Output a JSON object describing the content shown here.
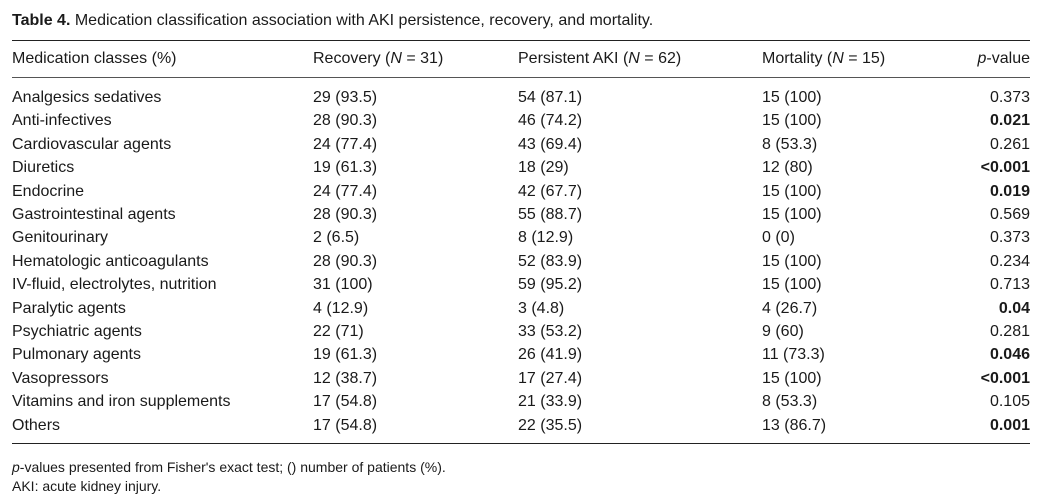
{
  "caption": {
    "label": "Table 4.",
    "text": "Medication classification association with AKI persistence, recovery, and mortality."
  },
  "headers": {
    "medication": "Medication classes (%)",
    "recovery": "Recovery (",
    "recovery_n": "N",
    "recovery_val": " = 31)",
    "persistent": "Persistent AKI (",
    "persistent_n": "N",
    "persistent_val": " = 62)",
    "mortality": "Mortality (",
    "mortality_n": "N",
    "mortality_val": " = 15)",
    "p_italic": "p",
    "p_rest": "-value"
  },
  "rows": [
    {
      "name": "Analgesics sedatives",
      "recovery": "29 (93.5)",
      "persistent": "54 (87.1)",
      "mortality": "15 (100)",
      "p": "0.373",
      "bold": false
    },
    {
      "name": "Anti-infectives",
      "recovery": "28 (90.3)",
      "persistent": "46 (74.2)",
      "mortality": "15 (100)",
      "p": "0.021",
      "bold": true
    },
    {
      "name": "Cardiovascular agents",
      "recovery": "24 (77.4)",
      "persistent": "43 (69.4)",
      "mortality": "8 (53.3)",
      "p": "0.261",
      "bold": false
    },
    {
      "name": "Diuretics",
      "recovery": "19 (61.3)",
      "persistent": "18 (29)",
      "mortality": "12 (80)",
      "p": "<0.001",
      "bold": true
    },
    {
      "name": "Endocrine",
      "recovery": "24 (77.4)",
      "persistent": "42 (67.7)",
      "mortality": "15 (100)",
      "p": "0.019",
      "bold": true
    },
    {
      "name": "Gastrointestinal agents",
      "recovery": "28 (90.3)",
      "persistent": "55 (88.7)",
      "mortality": "15 (100)",
      "p": "0.569",
      "bold": false
    },
    {
      "name": "Genitourinary",
      "recovery": "2 (6.5)",
      "persistent": "8 (12.9)",
      "mortality": "0 (0)",
      "p": "0.373",
      "bold": false
    },
    {
      "name": "Hematologic anticoagulants",
      "recovery": "28 (90.3)",
      "persistent": "52 (83.9)",
      "mortality": "15 (100)",
      "p": "0.234",
      "bold": false
    },
    {
      "name": "IV-fluid, electrolytes, nutrition",
      "recovery": "31 (100)",
      "persistent": "59 (95.2)",
      "mortality": "15 (100)",
      "p": "0.713",
      "bold": false
    },
    {
      "name": "Paralytic agents",
      "recovery": "4 (12.9)",
      "persistent": "3 (4.8)",
      "mortality": "4 (26.7)",
      "p": "0.04",
      "bold": true
    },
    {
      "name": "Psychiatric agents",
      "recovery": "22 (71)",
      "persistent": "33 (53.2)",
      "mortality": "9 (60)",
      "p": "0.281",
      "bold": false
    },
    {
      "name": "Pulmonary agents",
      "recovery": "19 (61.3)",
      "persistent": "26 (41.9)",
      "mortality": "11 (73.3)",
      "p": "0.046",
      "bold": true
    },
    {
      "name": "Vasopressors",
      "recovery": "12 (38.7)",
      "persistent": "17 (27.4)",
      "mortality": "15 (100)",
      "p": "<0.001",
      "bold": true
    },
    {
      "name": "Vitamins and iron supplements",
      "recovery": "17 (54.8)",
      "persistent": "21 (33.9)",
      "mortality": "8 (53.3)",
      "p": "0.105",
      "bold": false
    },
    {
      "name": "Others",
      "recovery": "17 (54.8)",
      "persistent": "22 (35.5)",
      "mortality": "13 (86.7)",
      "p": "0.001",
      "bold": true
    }
  ],
  "notes": {
    "line1_italic": "p",
    "line1_rest": "-values presented from Fisher's exact test; () number of patients (%).",
    "line2": "AKI: acute kidney injury."
  }
}
